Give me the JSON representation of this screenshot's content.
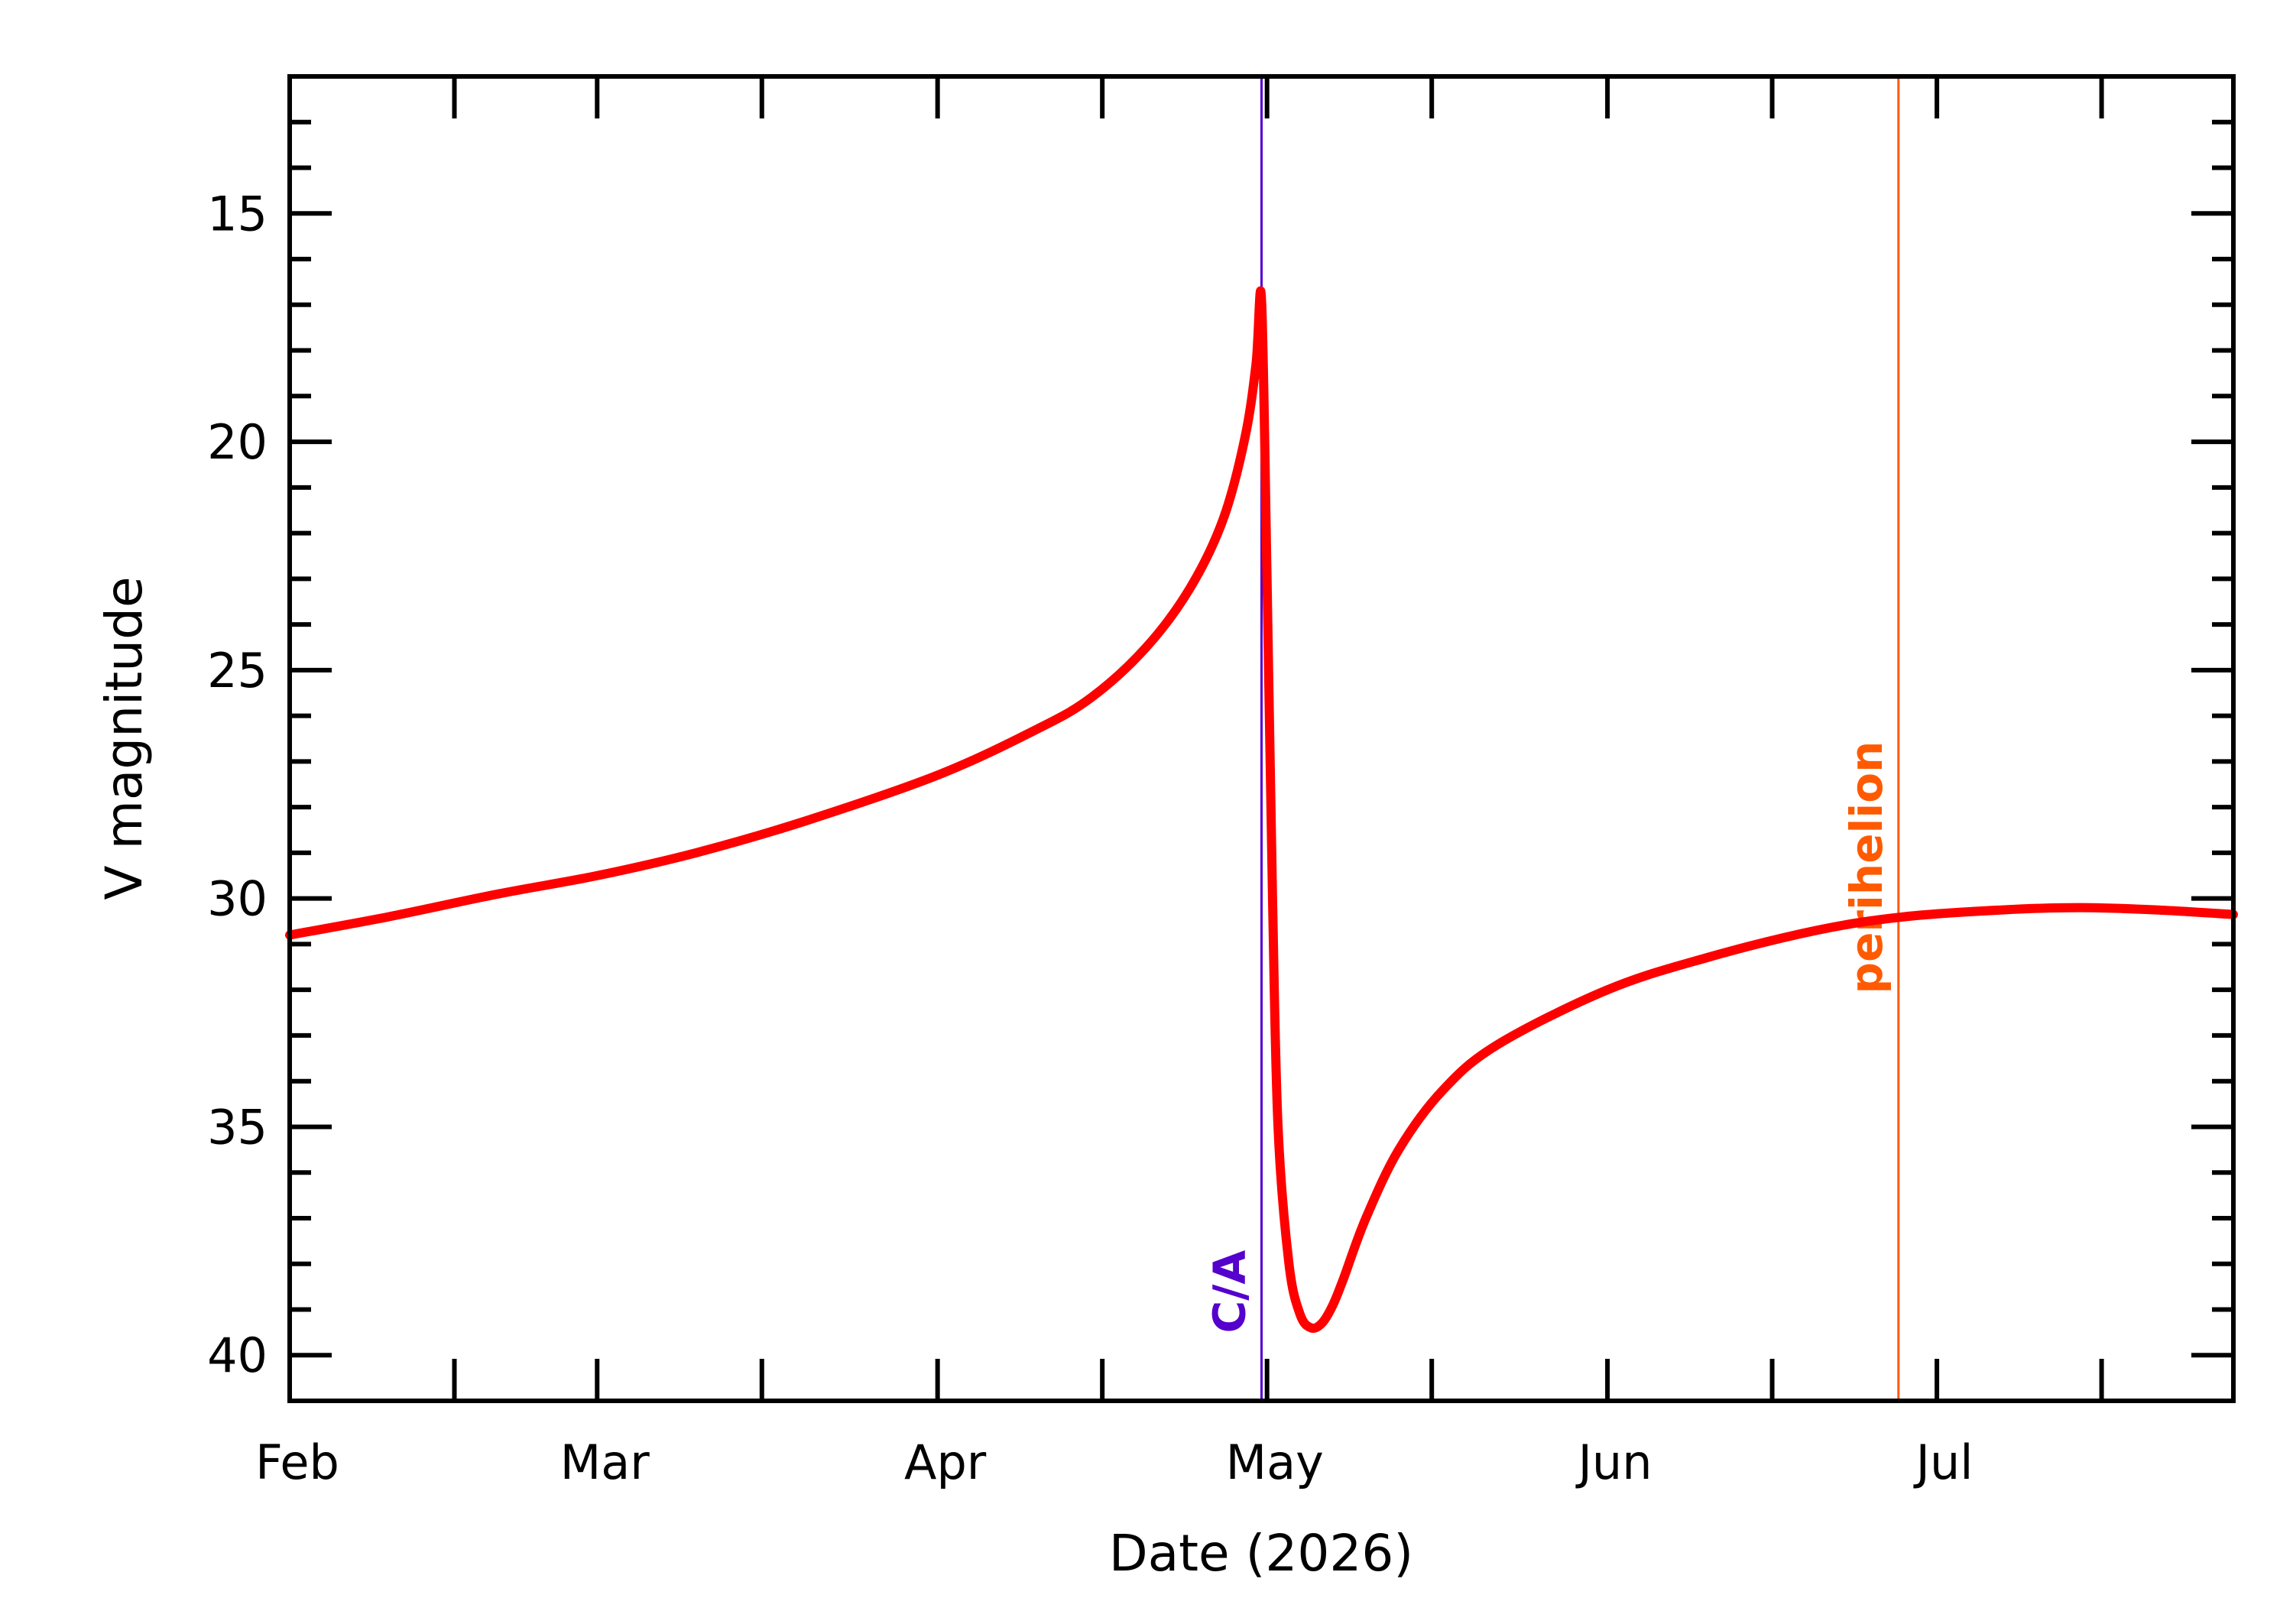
{
  "chart_data": {
    "type": "line",
    "xlabel": "Date (2026)",
    "ylabel": "V magnitude",
    "x_axis": {
      "start": "2026-02-01",
      "end": "2026-07-28",
      "ticks": [
        {
          "date": "2026-02-01",
          "label": "Feb"
        },
        {
          "date": "2026-03-01",
          "label": "Mar"
        },
        {
          "date": "2026-04-01",
          "label": "Apr"
        },
        {
          "date": "2026-05-01",
          "label": "May"
        },
        {
          "date": "2026-06-01",
          "label": "Jun"
        },
        {
          "date": "2026-07-01",
          "label": "Jul"
        }
      ]
    },
    "y_axis": {
      "range": [
        12,
        41
      ],
      "inverted": true,
      "ticks": [
        15,
        20,
        25,
        30,
        35,
        40
      ]
    },
    "series": [
      {
        "color": "#ff0000",
        "points": [
          [
            "2026-02-01",
            30.8
          ],
          [
            "2026-02-10",
            30.4
          ],
          [
            "2026-02-20",
            29.9
          ],
          [
            "2026-03-01",
            29.5
          ],
          [
            "2026-03-10",
            29.0
          ],
          [
            "2026-03-20",
            28.3
          ],
          [
            "2026-04-01",
            27.3
          ],
          [
            "2026-04-10",
            26.3
          ],
          [
            "2026-04-15",
            25.6
          ],
          [
            "2026-04-20",
            24.5
          ],
          [
            "2026-04-24",
            23.2
          ],
          [
            "2026-04-27",
            21.7
          ],
          [
            "2026-04-29",
            19.9
          ],
          [
            "2026-04-30",
            18.3
          ],
          [
            "2026-04-30T12:00",
            16.9
          ],
          [
            "2026-05-01",
            23.0
          ],
          [
            "2026-05-01T12:00",
            30.0
          ],
          [
            "2026-05-02",
            35.0
          ],
          [
            "2026-05-03",
            38.0
          ],
          [
            "2026-05-04",
            39.1
          ],
          [
            "2026-05-05",
            39.4
          ],
          [
            "2026-05-06",
            39.3
          ],
          [
            "2026-05-07",
            38.9
          ],
          [
            "2026-05-08",
            38.3
          ],
          [
            "2026-05-10",
            37.0
          ],
          [
            "2026-05-13",
            35.5
          ],
          [
            "2026-05-17",
            34.2
          ],
          [
            "2026-05-22",
            33.2
          ],
          [
            "2026-06-01",
            32.0
          ],
          [
            "2026-06-10",
            31.3
          ],
          [
            "2026-06-20",
            30.7
          ],
          [
            "2026-06-28",
            30.4
          ],
          [
            "2026-07-07",
            30.25
          ],
          [
            "2026-07-14",
            30.2
          ],
          [
            "2026-07-21",
            30.25
          ],
          [
            "2026-07-28",
            30.35
          ]
        ]
      }
    ],
    "markers": [
      {
        "label": "C/A",
        "date": "2026-04-30T12:00",
        "color": "#5500cc"
      },
      {
        "label": "perihelion",
        "date": "2026-06-27T12:00",
        "color": "#ff5a00"
      }
    ]
  }
}
